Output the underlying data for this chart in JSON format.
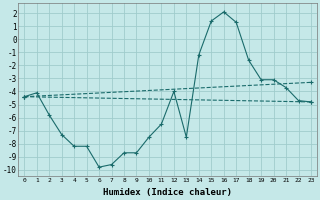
{
  "xlabel": "Humidex (Indice chaleur)",
  "background_color": "#c5e8e8",
  "grid_color": "#a0cccc",
  "line_color": "#1a6b6b",
  "curve1_x": [
    0,
    1,
    2,
    3,
    4,
    5,
    6,
    7,
    8,
    9,
    10,
    11,
    12,
    13,
    14,
    15,
    16,
    17,
    18,
    19,
    20,
    21,
    22,
    23
  ],
  "curve1_y": [
    -4.4,
    -4.1,
    -5.8,
    -7.3,
    -8.2,
    -8.2,
    -9.8,
    -9.6,
    -8.7,
    -8.7,
    -7.5,
    -6.5,
    -4.0,
    -7.5,
    -1.2,
    1.4,
    2.1,
    1.3,
    -1.6,
    -3.1,
    -3.1,
    -3.7,
    -4.7,
    -4.8
  ],
  "curve2_x": [
    0,
    23
  ],
  "curve2_y": [
    -4.4,
    -3.3
  ],
  "curve3_x": [
    0,
    23
  ],
  "curve3_y": [
    -4.4,
    -4.8
  ],
  "xlim": [
    -0.5,
    23.5
  ],
  "ylim": [
    -10.5,
    2.8
  ],
  "xticks": [
    0,
    1,
    2,
    3,
    4,
    5,
    6,
    7,
    8,
    9,
    10,
    11,
    12,
    13,
    14,
    15,
    16,
    17,
    18,
    19,
    20,
    21,
    22,
    23
  ],
  "yticks": [
    -10,
    -9,
    -8,
    -7,
    -6,
    -5,
    -4,
    -3,
    -2,
    -1,
    0,
    1,
    2
  ]
}
